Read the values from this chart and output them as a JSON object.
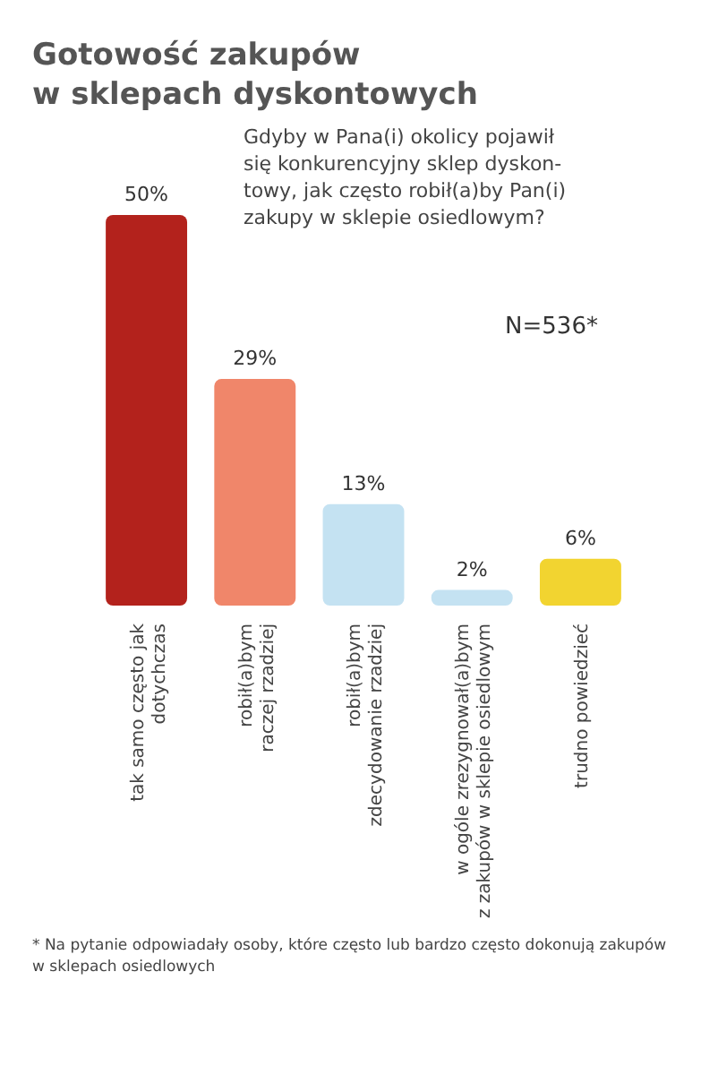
{
  "chart_data": {
    "type": "bar",
    "title": "Gotowość zakupów\nw sklepach dyskontowych",
    "subtitle": "Gdyby w Pana(i) okolicy pojawił\nsię konkurencyjny sklep dyskon-\ntowy, jak często robił(a)by Pan(i)\nzakupy w sklepie osiedlowym?",
    "categories": [
      "tak samo często jak\ndotychczas",
      "robił(a)bym\nraczej rzadziej",
      "robił(a)bym\nzdecydowanie rzadziej",
      "w ogóle zrezygnował(a)bym\nz zakupów w sklepie osiedlowym",
      "trudno powiedzieć"
    ],
    "values": [
      50,
      29,
      13,
      2,
      6
    ],
    "value_labels": [
      "50%",
      "29%",
      "13%",
      "2%",
      "6%"
    ],
    "colors": [
      "#b3221c",
      "#f0866a",
      "#c4e2f2",
      "#c4e2f2",
      "#f2d430"
    ],
    "ylim": [
      0,
      50
    ],
    "tick_labels": "x",
    "annotations": [
      "N=536*",
      "* Na pytanie odpowiadały osoby, które często lub bardzo często dokonują zakupów\nw sklepach osiedlowych"
    ]
  }
}
